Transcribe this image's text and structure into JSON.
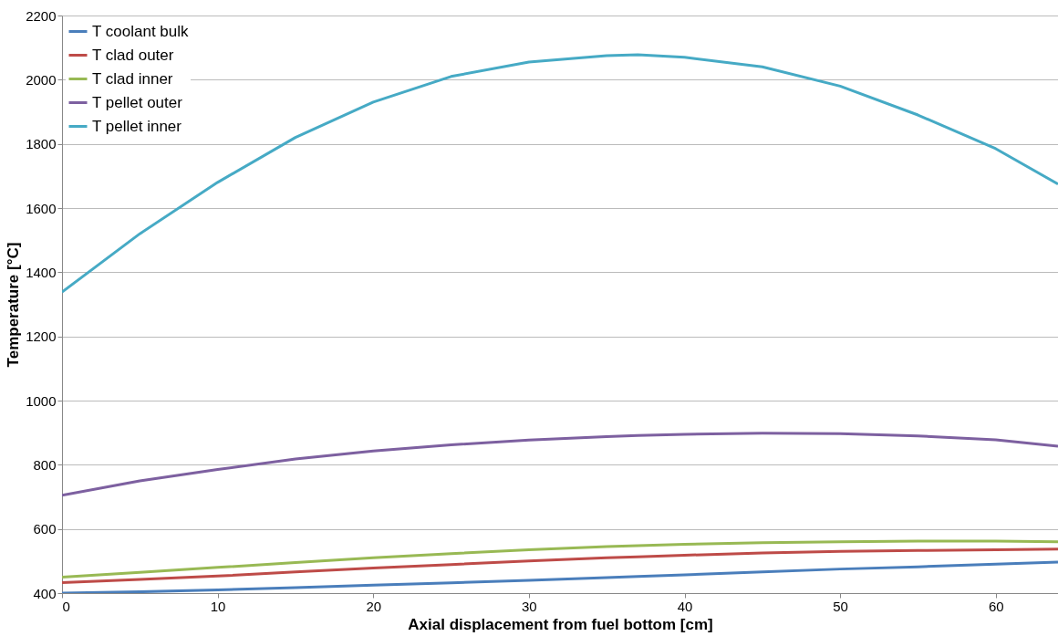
{
  "chart_data": {
    "type": "line",
    "xlabel": "Axial displacement from fuel bottom [cm]",
    "ylabel": "Temperature [°C]",
    "x": [
      0,
      5,
      10,
      15,
      20,
      25,
      30,
      35,
      37,
      40,
      45,
      50,
      55,
      60,
      64
    ],
    "series": [
      {
        "name": "T coolant bulk",
        "color": "#4a7ebb",
        "values": [
          400,
          404,
          410,
          417,
          425,
          432,
          440,
          448,
          452,
          457,
          466,
          475,
          482,
          490,
          497
        ]
      },
      {
        "name": "T clad outer",
        "color": "#be4b48",
        "values": [
          433,
          443,
          453,
          466,
          478,
          489,
          500,
          510,
          513,
          518,
          525,
          530,
          533,
          535,
          537
        ]
      },
      {
        "name": "T clad inner",
        "color": "#98b954",
        "values": [
          450,
          465,
          480,
          495,
          510,
          523,
          535,
          545,
          548,
          552,
          557,
          560,
          562,
          562,
          560
        ]
      },
      {
        "name": "T pellet outer",
        "color": "#7d60a0",
        "values": [
          705,
          750,
          785,
          818,
          843,
          862,
          877,
          888,
          891,
          895,
          898,
          897,
          890,
          878,
          858
        ]
      },
      {
        "name": "T pellet inner",
        "color": "#46aac5",
        "values": [
          1338,
          1520,
          1680,
          1820,
          1930,
          2010,
          2055,
          2075,
          2078,
          2070,
          2040,
          1980,
          1890,
          1785,
          1675
        ]
      }
    ],
    "xlim": [
      0,
      64
    ],
    "xticks": [
      0,
      10,
      20,
      30,
      40,
      50,
      60
    ],
    "ylim": [
      400,
      2200
    ],
    "yticks": [
      400,
      600,
      800,
      1000,
      1200,
      1400,
      1600,
      1800,
      2000,
      2200
    ],
    "grid": "y",
    "legend": "top left",
    "marker": "none",
    "line_style": "solid"
  }
}
